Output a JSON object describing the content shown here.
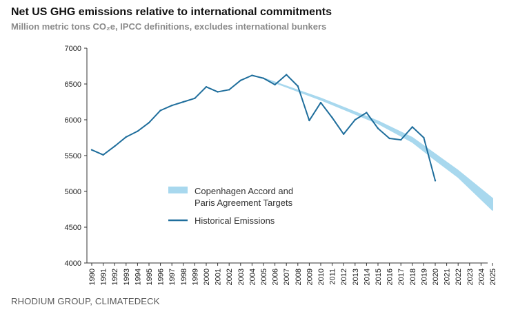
{
  "chart_data": {
    "type": "line",
    "title": "Net US GHG emissions relative to international commitments",
    "subtitle": "Million metric tons CO₂e, IPCC definitions, excludes international bunkers",
    "source": "RHODIUM GROUP, CLIMATEDECK",
    "ylim": [
      4000,
      7000
    ],
    "yticks": [
      "4000",
      "4500",
      "5000",
      "5500",
      "6000",
      "6500",
      "7000"
    ],
    "xlim": [
      1990,
      2025
    ],
    "xticks": [
      "1990",
      "1991",
      "1992",
      "1993",
      "1994",
      "1995",
      "1996",
      "1997",
      "1998",
      "1999",
      "2000",
      "2001",
      "2002",
      "2003",
      "2004",
      "2005",
      "2006",
      "2007",
      "2008",
      "2009",
      "2010",
      "2011",
      "2012",
      "2013",
      "2014",
      "2015",
      "2016",
      "2017",
      "2018",
      "2019",
      "2020",
      "2021",
      "2022",
      "2023",
      "2024",
      "2025"
    ],
    "legend": {
      "position": "center",
      "entries": [
        {
          "label_lines": [
            "Copenhagen Accord and",
            "Paris Agreement Targets"
          ]
        },
        {
          "label_lines": [
            "Historical Emissions"
          ]
        }
      ]
    },
    "series": [
      {
        "name": "Historical Emissions",
        "color": "#1f6e9c",
        "x": [
          1990,
          1991,
          1992,
          1993,
          1994,
          1995,
          1996,
          1997,
          1998,
          1999,
          2000,
          2001,
          2002,
          2003,
          2004,
          2005,
          2006,
          2007,
          2008,
          2009,
          2010,
          2011,
          2012,
          2013,
          2014,
          2015,
          2016,
          2017,
          2018,
          2019,
          2020
        ],
        "y": [
          5580,
          5510,
          5630,
          5760,
          5840,
          5960,
          6130,
          6200,
          6250,
          6300,
          6460,
          6390,
          6420,
          6550,
          6620,
          6580,
          6490,
          6630,
          6470,
          5990,
          6240,
          6030,
          5800,
          6000,
          6100,
          5880,
          5740,
          5720,
          5900,
          5750,
          5150
        ]
      },
      {
        "name": "Copenhagen Accord and Paris Agreement Targets",
        "color": "#a8d8ee",
        "x": [
          2005,
          2010,
          2015,
          2018,
          2020,
          2022,
          2025
        ],
        "y_upper": [
          6580,
          6300,
          5980,
          5750,
          5520,
          5290,
          4900
        ],
        "y_lower": [
          6580,
          6280,
          5950,
          5690,
          5440,
          5200,
          4740
        ]
      }
    ]
  }
}
